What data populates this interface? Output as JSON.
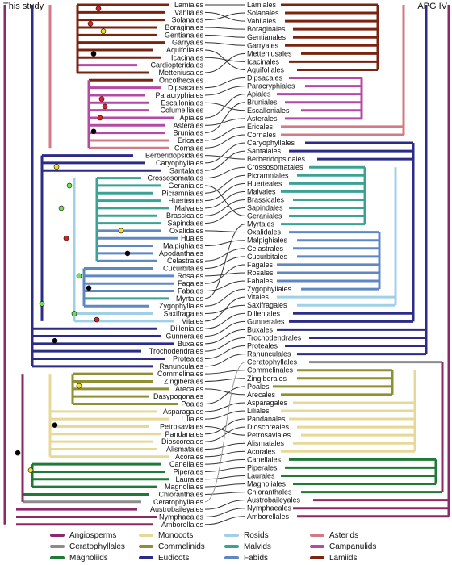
{
  "headers": {
    "left": "This study",
    "right": "APG IV"
  },
  "left_labels": [
    "Lamiales",
    "Vahliales",
    "Solanales",
    "Boraginales",
    "Gentianales",
    "Garryales",
    "Aquifoliales",
    "Icacinales",
    "Cardiopteridales",
    "Metteniusales",
    "Oncothecales",
    "Dipsacales",
    "Paracryphiales",
    "Escalloniales",
    "Columelliales",
    "Apiales",
    "Asterales",
    "Bruniales",
    "Ericales",
    "Cornales",
    "Berberidopsidales",
    "Caryophyllales",
    "Santalales",
    "Crossosomatales",
    "Geraniales",
    "Picramniales",
    "Huerteales",
    "Malvales",
    "Brassicales",
    "Sapindales",
    "Oxalidales",
    "Huales",
    "Malpighiales",
    "Apodanthales",
    "Celastrales",
    "Cucurbitales",
    "Rosales",
    "Fagales",
    "Fabales",
    "Myrtales",
    "Zygophyllales",
    "Saxifragales",
    "Vitales",
    "Dilleniales",
    "Gunnerales",
    "Buxales",
    "Trochodendrales",
    "Proteales",
    "Ranunculales",
    "Commelinales",
    "Zingiberales",
    "Arecales",
    "Dasypogonales",
    "Poales",
    "Asparagales",
    "Liliales",
    "Petrosaviales",
    "Pandanales",
    "Dioscoreales",
    "Alismatales",
    "Acorales",
    "Canellales",
    "Piperales",
    "Laurales",
    "Magnoliales",
    "Chloranthales",
    "Ceratophyllales",
    "Austrobaileyales",
    "Nymphaeales",
    "Amborellales"
  ],
  "right_labels": [
    "Lamiales",
    "Solanales",
    "Vahliales",
    "Boraginales",
    "Gentianales",
    "Garryales",
    "Metteniusales",
    "Icacinales",
    "Aquifoliales",
    "Dipsacales",
    "Paracryphiales",
    "Apiales",
    "Bruniales",
    "Escalloniales",
    "Asterales",
    "Ericales",
    "Cornales",
    "Caryophyllales",
    "Santalales",
    "Berberidopsidales",
    "Crossosomatales",
    "Picramniales",
    "Huerteales",
    "Malvales",
    "Brassicales",
    "Sapindales",
    "Geraniales",
    "Myrtales",
    "Oxalidales",
    "Malpighiales",
    "Celastrales",
    "Cucurbitales",
    "Fagales",
    "Rosales",
    "Fabales",
    "Zygophyllales",
    "Vitales",
    "Saxifragales",
    "Dilleniales",
    "Gunnerales",
    "Buxales",
    "Trochodendrales",
    "Proteales",
    "Ranunculales",
    "Ceratophyllales",
    "Commelinales",
    "Zingiberales",
    "Poales",
    "Arecales",
    "Asparagales",
    "Liliales",
    "Pandanales",
    "Dioscoreales",
    "Petrosaviales",
    "Alismatales",
    "Acorales",
    "Canellales",
    "Piperales",
    "Laurales",
    "Magnoliales",
    "Chloranthales",
    "Austrobaileyales",
    "Nymphaeales",
    "Amborellales"
  ],
  "legend": [
    {
      "label": "Angiosperms",
      "color": "#8b2a6a"
    },
    {
      "label": "Ceratophyllales",
      "color": "#8c8c8c"
    },
    {
      "label": "Magnoliids",
      "color": "#1e7a35"
    },
    {
      "label": "Monocots",
      "color": "#e8d898"
    },
    {
      "label": "Commelinids",
      "color": "#8f9032"
    },
    {
      "label": "Eudicots",
      "color": "#2c2c88"
    },
    {
      "label": "Rosids",
      "color": "#9fd0e8"
    },
    {
      "label": "Malvids",
      "color": "#3aa394"
    },
    {
      "label": "Fabids",
      "color": "#5e88c4"
    },
    {
      "label": "Asterids",
      "color": "#d47a86"
    },
    {
      "label": "Campanulids",
      "color": "#b44aa6"
    },
    {
      "label": "Lamiids",
      "color": "#7a2410"
    }
  ],
  "node_colors": {
    "red": "#e02020",
    "yellow": "#f5e020",
    "green": "#70e050",
    "black": "#000000"
  }
}
